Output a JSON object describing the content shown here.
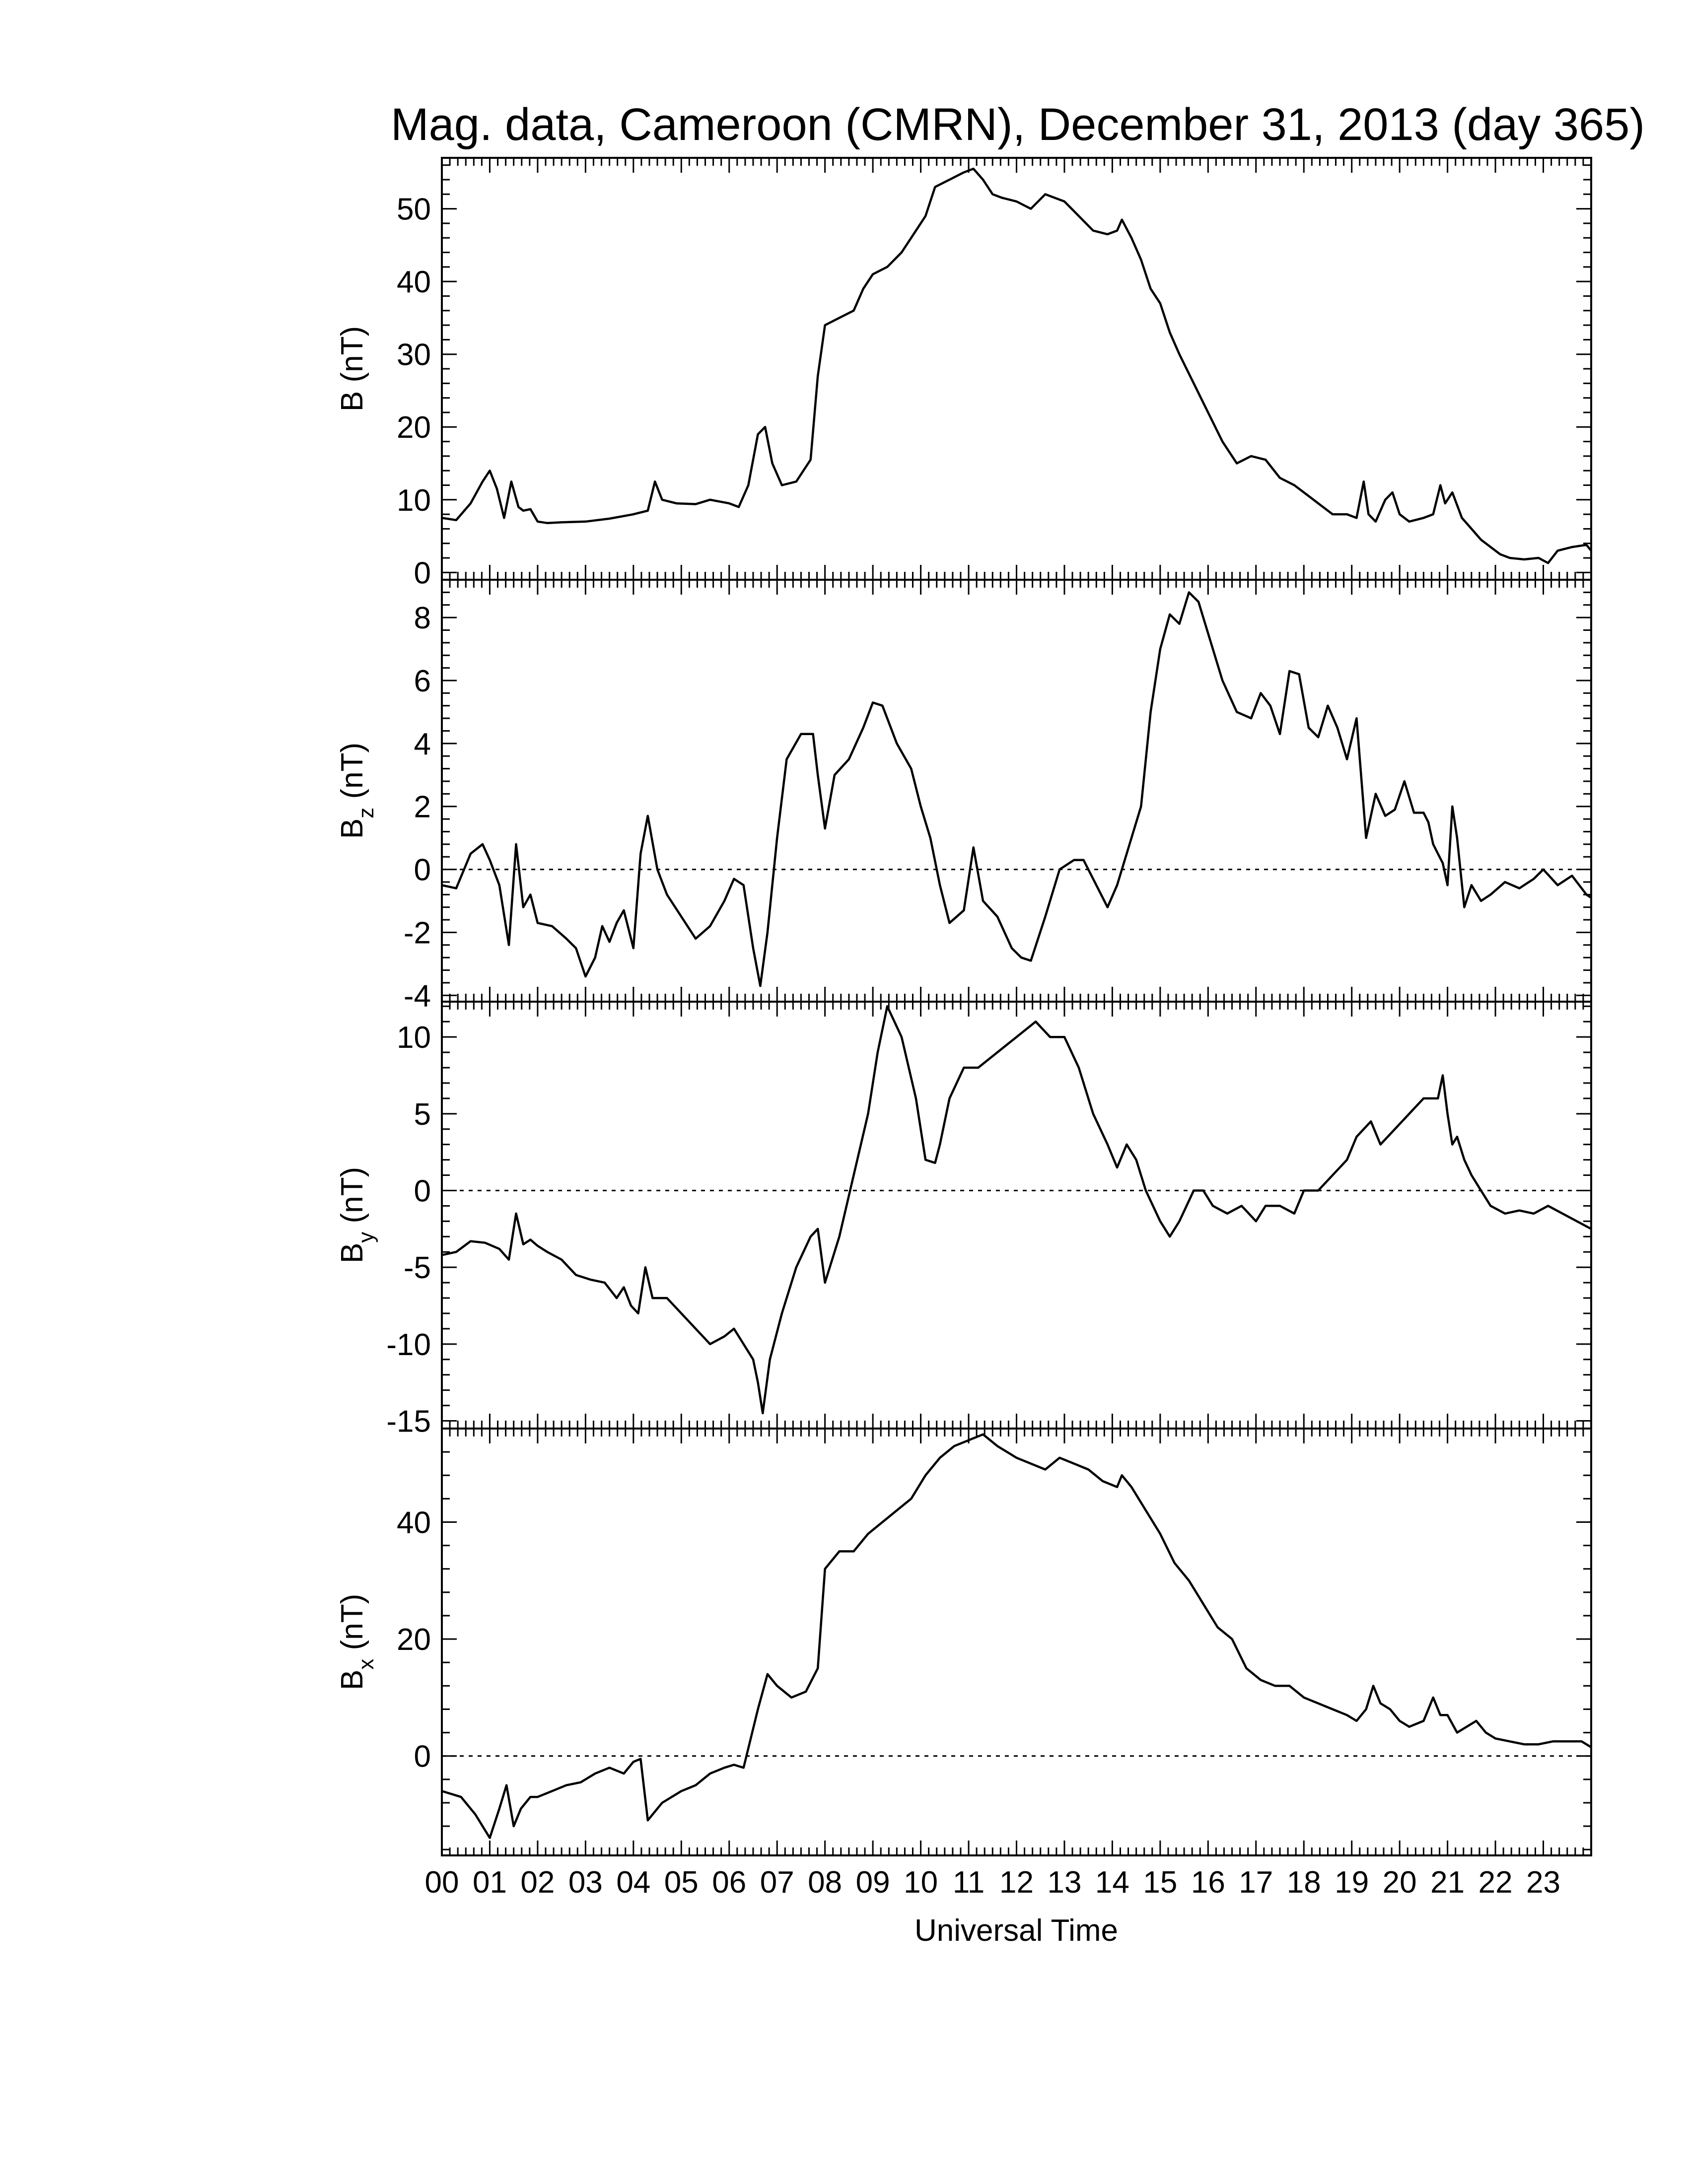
{
  "chart_data": {
    "type": "line",
    "title": "Mag. data, Cameroon (CMRN), December 31, 2013 (day 365)",
    "xlabel": "Universal Time",
    "x_tick_labels": [
      "00",
      "01",
      "02",
      "03",
      "04",
      "05",
      "06",
      "07",
      "08",
      "09",
      "10",
      "11",
      "12",
      "13",
      "14",
      "15",
      "16",
      "17",
      "18",
      "19",
      "20",
      "21",
      "22",
      "23"
    ],
    "xlim": [
      0,
      24
    ],
    "panels": [
      {
        "name": "B",
        "ylabel_main": "B",
        "ylabel_sub": "",
        "ylabel_unit": "(nT)",
        "ylim": [
          -1,
          57
        ],
        "yticks": [
          0,
          10,
          20,
          30,
          40,
          50
        ],
        "zero_line": false,
        "x": [
          0,
          0.3,
          0.6,
          0.85,
          1.0,
          1.15,
          1.3,
          1.45,
          1.6,
          1.7,
          1.85,
          2.0,
          2.2,
          2.5,
          3.0,
          3.5,
          4.0,
          4.3,
          4.45,
          4.6,
          4.9,
          5.3,
          5.6,
          6.0,
          6.2,
          6.4,
          6.6,
          6.75,
          6.9,
          7.1,
          7.4,
          7.7,
          7.85,
          8.0,
          8.3,
          8.6,
          8.8,
          9.0,
          9.3,
          9.6,
          9.9,
          10.1,
          10.3,
          10.6,
          10.9,
          11.1,
          11.3,
          11.5,
          11.7,
          12.0,
          12.3,
          12.6,
          12.8,
          13.0,
          13.3,
          13.6,
          13.9,
          14.1,
          14.2,
          14.4,
          14.6,
          14.8,
          15.0,
          15.2,
          15.4,
          15.7,
          16.0,
          16.3,
          16.6,
          16.9,
          17.2,
          17.5,
          17.8,
          18.0,
          18.3,
          18.6,
          18.9,
          19.1,
          19.25,
          19.35,
          19.5,
          19.7,
          19.85,
          20.0,
          20.2,
          20.5,
          20.7,
          20.85,
          20.95,
          21.1,
          21.3,
          21.5,
          21.7,
          21.9,
          22.1,
          22.3,
          22.6,
          22.9,
          23.1,
          23.3,
          23.6,
          23.9,
          24.0
        ],
        "y": [
          7.5,
          7.2,
          9.5,
          12.5,
          14,
          11.5,
          7.5,
          12.5,
          9,
          8.5,
          8.7,
          7,
          6.8,
          6.9,
          7,
          7.4,
          8,
          8.5,
          12.5,
          10,
          9.5,
          9.4,
          10,
          9.5,
          9,
          12,
          19,
          20,
          15,
          12,
          12.5,
          15.5,
          27,
          34,
          35,
          36,
          39,
          41,
          42,
          44,
          47,
          49,
          53,
          54,
          55,
          55.5,
          54,
          52,
          51.5,
          51,
          50,
          52,
          51.5,
          51,
          49,
          47,
          46.5,
          47,
          48.5,
          46,
          43,
          39,
          37,
          33,
          30,
          26,
          22,
          18,
          15,
          16,
          15.5,
          13,
          12,
          11,
          9.5,
          8,
          8,
          7.5,
          12.5,
          8,
          7,
          10,
          11,
          8,
          7,
          7.5,
          8,
          12,
          9.5,
          11,
          7.5,
          6,
          4.5,
          3.5,
          2.5,
          2,
          1.8,
          2,
          1.3,
          3,
          3.5,
          3.8,
          3
        ]
      },
      {
        "name": "Bz",
        "ylabel_main": "B",
        "ylabel_sub": "z",
        "ylabel_unit": "(nT)",
        "ylim": [
          -4.2,
          9.2
        ],
        "yticks": [
          -4,
          -2,
          0,
          2,
          4,
          6,
          8
        ],
        "zero_line": true,
        "x": [
          0,
          0.3,
          0.6,
          0.85,
          1.0,
          1.2,
          1.4,
          1.55,
          1.7,
          1.85,
          2.0,
          2.3,
          2.6,
          2.8,
          3.0,
          3.2,
          3.35,
          3.5,
          3.65,
          3.8,
          4.0,
          4.15,
          4.3,
          4.5,
          4.7,
          5.0,
          5.3,
          5.6,
          5.9,
          6.1,
          6.3,
          6.5,
          6.65,
          6.8,
          7.0,
          7.2,
          7.5,
          7.75,
          7.85,
          8.0,
          8.2,
          8.5,
          8.8,
          9.0,
          9.2,
          9.5,
          9.8,
          10.0,
          10.2,
          10.4,
          10.6,
          10.9,
          11.1,
          11.3,
          11.6,
          11.9,
          12.1,
          12.3,
          12.6,
          12.9,
          13.2,
          13.4,
          13.6,
          13.9,
          14.1,
          14.3,
          14.6,
          14.8,
          15.0,
          15.2,
          15.4,
          15.6,
          15.8,
          16.0,
          16.3,
          16.6,
          16.9,
          17.1,
          17.3,
          17.5,
          17.7,
          17.9,
          18.1,
          18.3,
          18.5,
          18.7,
          18.9,
          19.1,
          19.3,
          19.5,
          19.7,
          19.9,
          20.1,
          20.3,
          20.5,
          20.6,
          20.7,
          20.8,
          20.9,
          21.0,
          21.1,
          21.2,
          21.35,
          21.5,
          21.7,
          21.9,
          22.2,
          22.5,
          22.8,
          23.0,
          23.3,
          23.6,
          23.9,
          24.0
        ],
        "y": [
          -0.5,
          -0.6,
          0.5,
          0.8,
          0.3,
          -0.5,
          -2.4,
          0.8,
          -1.2,
          -0.8,
          -1.7,
          -1.8,
          -2.2,
          -2.5,
          -3.4,
          -2.8,
          -1.8,
          -2.3,
          -1.7,
          -1.3,
          -2.5,
          0.5,
          1.7,
          0,
          -0.8,
          -1.5,
          -2.2,
          -1.8,
          -1,
          -0.3,
          -0.5,
          -2.5,
          -3.7,
          -2,
          1,
          3.5,
          4.3,
          4.3,
          3,
          1.3,
          3,
          3.5,
          4.5,
          5.3,
          5.2,
          4,
          3.2,
          2,
          1,
          -0.5,
          -1.7,
          -1.3,
          0.7,
          -1,
          -1.5,
          -2.5,
          -2.8,
          -2.9,
          -1.5,
          0,
          0.3,
          0.3,
          -0.3,
          -1.2,
          -0.5,
          0.5,
          2,
          5,
          7,
          8.1,
          7.8,
          8.8,
          8.5,
          7.5,
          6,
          5,
          4.8,
          5.6,
          5.2,
          4.3,
          6.3,
          6.2,
          4.5,
          4.2,
          5.2,
          4.5,
          3.5,
          4.8,
          1,
          2.4,
          1.7,
          1.9,
          2.8,
          1.8,
          1.8,
          1.5,
          0.8,
          0.5,
          0.2,
          -0.5,
          2,
          1,
          -1.2,
          -0.5,
          -1,
          -0.8,
          -0.4,
          -0.6,
          -0.3,
          0,
          -0.5,
          -0.2,
          -0.8,
          -0.9
        ]
      },
      {
        "name": "By",
        "ylabel_main": "B",
        "ylabel_sub": "y",
        "ylabel_unit": "(nT)",
        "ylim": [
          -15.5,
          12.3
        ],
        "yticks": [
          -15,
          -10,
          -5,
          0,
          5,
          10
        ],
        "zero_line": true,
        "x": [
          0,
          0.3,
          0.6,
          0.9,
          1.2,
          1.4,
          1.55,
          1.7,
          1.85,
          2.0,
          2.2,
          2.5,
          2.8,
          3.1,
          3.4,
          3.65,
          3.8,
          3.95,
          4.1,
          4.25,
          4.4,
          4.7,
          5.0,
          5.3,
          5.6,
          5.9,
          6.1,
          6.3,
          6.5,
          6.6,
          6.7,
          6.85,
          7.1,
          7.4,
          7.7,
          7.85,
          8.0,
          8.3,
          8.6,
          8.9,
          9.1,
          9.3,
          9.6,
          9.9,
          10.1,
          10.3,
          10.4,
          10.6,
          10.9,
          11.2,
          11.6,
          12.0,
          12.4,
          12.7,
          13.0,
          13.3,
          13.6,
          13.9,
          14.1,
          14.3,
          14.5,
          14.7,
          15.0,
          15.2,
          15.4,
          15.7,
          15.9,
          16.1,
          16.4,
          16.7,
          17.0,
          17.2,
          17.5,
          17.8,
          18.0,
          18.3,
          18.6,
          18.9,
          19.1,
          19.4,
          19.6,
          19.9,
          20.2,
          20.5,
          20.8,
          20.9,
          21.0,
          21.1,
          21.2,
          21.35,
          21.5,
          21.7,
          21.9,
          22.2,
          22.5,
          22.8,
          23.1,
          23.4,
          23.7,
          24.0
        ],
        "y": [
          -4.2,
          -4,
          -3.3,
          -3.4,
          -3.8,
          -4.5,
          -1.5,
          -3.5,
          -3.2,
          -3.6,
          -4,
          -4.5,
          -5.5,
          -5.8,
          -6,
          -7,
          -6.3,
          -7.5,
          -8,
          -5,
          -7,
          -7,
          -8,
          -9,
          -10,
          -9.5,
          -9,
          -10,
          -11,
          -12.5,
          -14.5,
          -11,
          -8,
          -5,
          -3,
          -2.5,
          -6,
          -3,
          1,
          5,
          9,
          12,
          10,
          6,
          2,
          1.8,
          3,
          6,
          8,
          8,
          9,
          10,
          11,
          10,
          10,
          8,
          5,
          3,
          1.5,
          3,
          2,
          0,
          -2,
          -3,
          -2,
          0,
          0,
          -1,
          -1.5,
          -1,
          -2,
          -1,
          -1,
          -1.5,
          0,
          0,
          1,
          2,
          3.5,
          4.5,
          3,
          4,
          5,
          6,
          6,
          7.5,
          5,
          3,
          3.5,
          2,
          1,
          0,
          -1,
          -1.5,
          -1.3,
          -1.5,
          -1,
          -1.5,
          -2,
          -2.5
        ]
      },
      {
        "name": "Bx",
        "ylabel_main": "B",
        "ylabel_sub": "x",
        "ylabel_unit": "(nT)",
        "ylim": [
          -17,
          56
        ],
        "yticks": [
          0,
          20,
          40
        ],
        "zero_line": true,
        "x": [
          0,
          0.4,
          0.7,
          1.0,
          1.2,
          1.35,
          1.5,
          1.65,
          1.85,
          2.0,
          2.3,
          2.6,
          2.9,
          3.2,
          3.5,
          3.8,
          4.0,
          4.15,
          4.3,
          4.6,
          5.0,
          5.3,
          5.6,
          5.9,
          6.1,
          6.3,
          6.6,
          6.8,
          7.0,
          7.3,
          7.6,
          7.85,
          8.0,
          8.3,
          8.6,
          8.9,
          9.2,
          9.5,
          9.8,
          10.1,
          10.4,
          10.7,
          11.0,
          11.3,
          11.6,
          12.0,
          12.3,
          12.6,
          12.9,
          13.2,
          13.5,
          13.8,
          14.1,
          14.2,
          14.4,
          14.7,
          15.0,
          15.3,
          15.6,
          15.9,
          16.2,
          16.5,
          16.8,
          17.1,
          17.4,
          17.7,
          18.0,
          18.3,
          18.6,
          18.9,
          19.1,
          19.3,
          19.45,
          19.6,
          19.8,
          20.0,
          20.2,
          20.5,
          20.7,
          20.85,
          21.0,
          21.2,
          21.4,
          21.6,
          21.8,
          22.0,
          22.3,
          22.6,
          22.9,
          23.2,
          23.5,
          23.8,
          24.0
        ],
        "y": [
          -6,
          -7,
          -10,
          -14,
          -9,
          -5,
          -12,
          -9,
          -7,
          -7,
          -6,
          -5,
          -4.5,
          -3,
          -2,
          -3,
          -1,
          -0.5,
          -11,
          -8,
          -6,
          -5,
          -3,
          -2,
          -1.5,
          -2,
          8,
          14,
          12,
          10,
          11,
          15,
          32,
          35,
          35,
          38,
          40,
          42,
          44,
          48,
          51,
          53,
          54,
          55,
          53,
          51,
          50,
          49,
          51,
          50,
          49,
          47,
          46,
          48,
          46,
          42,
          38,
          33,
          30,
          26,
          22,
          20,
          15,
          13,
          12,
          12,
          10,
          9,
          8,
          7,
          6,
          8,
          12,
          9,
          8,
          6,
          5,
          6,
          10,
          7,
          7,
          4,
          5,
          6,
          4,
          3,
          2.5,
          2,
          2,
          2.5,
          2.5,
          2.5,
          1.5
        ]
      }
    ]
  }
}
